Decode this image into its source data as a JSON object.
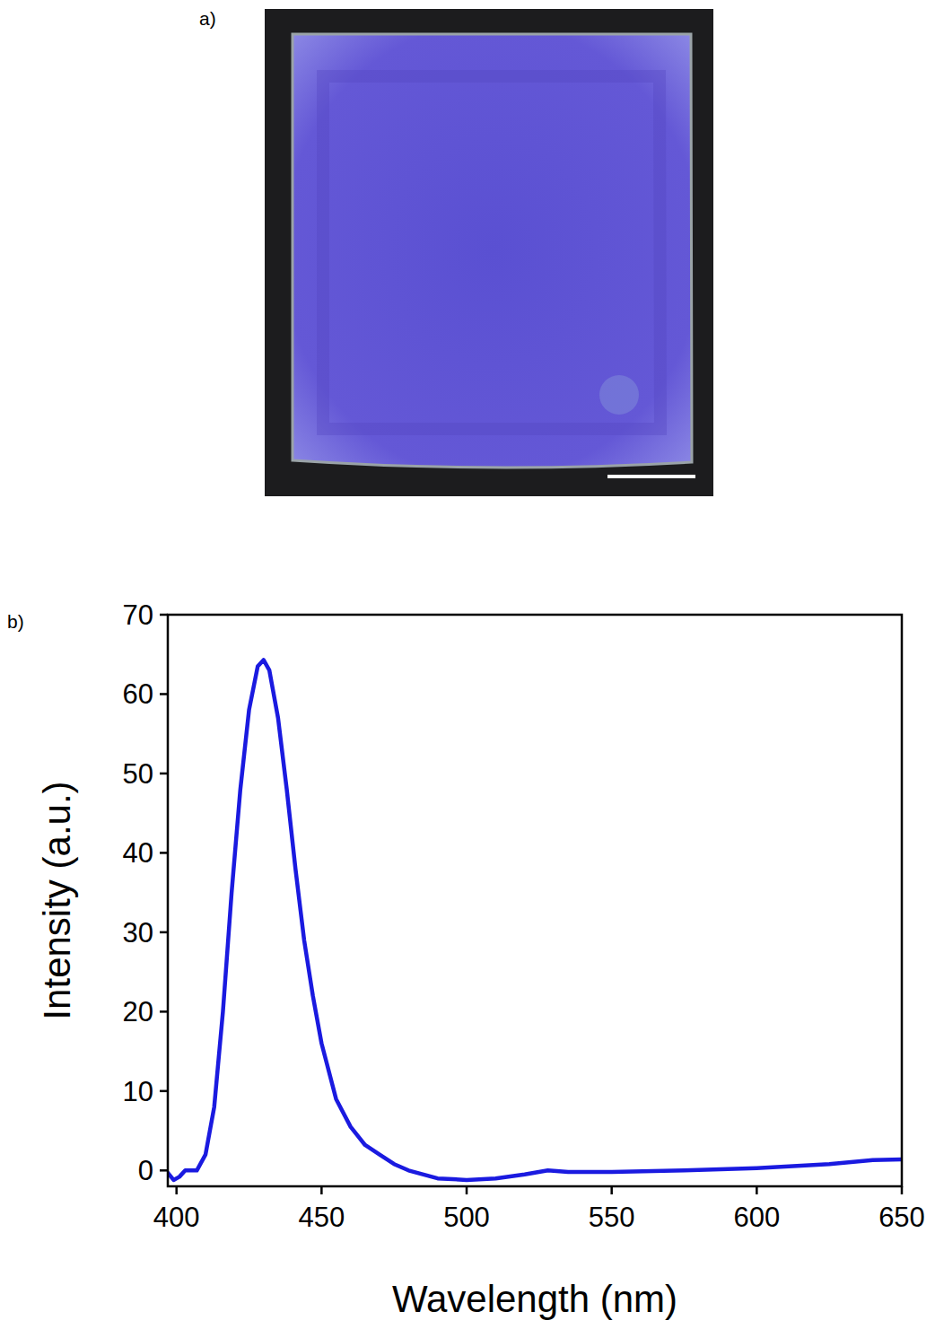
{
  "panels": {
    "a": "a)",
    "b": "b)"
  },
  "chart_data": {
    "type": "line",
    "x_label": "Wavelength (nm)",
    "y_label": "Intensity (a.u.)",
    "x": [
      397,
      399,
      401,
      403,
      407,
      410,
      413,
      416,
      419,
      422,
      425,
      428,
      430,
      432,
      435,
      438,
      441,
      444,
      447,
      450,
      455,
      460,
      465,
      470,
      475,
      480,
      490,
      500,
      510,
      520,
      528,
      535,
      550,
      575,
      600,
      625,
      640,
      650
    ],
    "series": [
      {
        "color": "#1a1ae0",
        "values": [
          -0.3,
          -1.2,
          -0.8,
          0,
          0,
          2,
          8,
          20,
          35,
          48,
          58,
          63.5,
          64.3,
          63,
          57,
          48,
          38,
          29,
          22,
          16,
          9,
          5.5,
          3.2,
          2,
          0.8,
          0,
          -1,
          -1.2,
          -1,
          -0.5,
          0,
          -0.2,
          -0.2,
          0,
          0.3,
          0.8,
          1.3,
          1.4
        ]
      }
    ],
    "xlim": [
      397,
      650
    ],
    "ylim": [
      -2,
      70
    ],
    "xticks": [
      400,
      450,
      500,
      550,
      600,
      650
    ],
    "yticks": [
      0,
      10,
      20,
      30,
      40,
      50,
      60,
      70
    ],
    "grid": false
  }
}
